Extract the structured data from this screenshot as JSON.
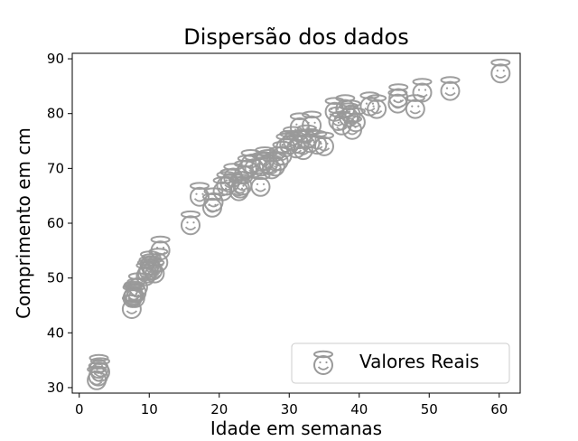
{
  "chart_data": {
    "type": "scatter",
    "title": "Dispersão dos dados",
    "xlabel": "Idade em semanas",
    "ylabel": "Comprimento em cm",
    "xlim": [
      -1,
      63
    ],
    "ylim": [
      29,
      91
    ],
    "xticks": [
      0,
      10,
      20,
      30,
      40,
      50,
      60
    ],
    "yticks": [
      30,
      40,
      50,
      60,
      70,
      80,
      90
    ],
    "grid": false,
    "legend_position": "lower-right",
    "marker": "smiling-face-with-halo",
    "series": [
      {
        "name": "Valores Reais",
        "color": "#999999",
        "points": [
          [
            2.5,
            31.5
          ],
          [
            2.7,
            32.2
          ],
          [
            3,
            33
          ],
          [
            2.8,
            33.6
          ],
          [
            7.5,
            44.5
          ],
          [
            7.6,
            46.5
          ],
          [
            7.7,
            46.8
          ],
          [
            7.8,
            47
          ],
          [
            8,
            46.5
          ],
          [
            8.2,
            47.5
          ],
          [
            8.4,
            48.5
          ],
          [
            9.5,
            50.5
          ],
          [
            9.7,
            51
          ],
          [
            9.9,
            51.5
          ],
          [
            10.1,
            52.5
          ],
          [
            10.3,
            52
          ],
          [
            10.5,
            51.5
          ],
          [
            10.8,
            51
          ],
          [
            11.3,
            53
          ],
          [
            11.6,
            55.2
          ],
          [
            15.9,
            59.8
          ],
          [
            17.2,
            65
          ],
          [
            19,
            63
          ],
          [
            19.2,
            64
          ],
          [
            20.5,
            66
          ],
          [
            21,
            67
          ],
          [
            21.5,
            67.5
          ],
          [
            22,
            68.5
          ],
          [
            22.8,
            66
          ],
          [
            23,
            66.5
          ],
          [
            23.3,
            67
          ],
          [
            23.5,
            69
          ],
          [
            24,
            70
          ],
          [
            24.5,
            71
          ],
          [
            25,
            70.2
          ],
          [
            25.9,
            66.8
          ],
          [
            26,
            70.5
          ],
          [
            26.5,
            71.5
          ],
          [
            27,
            71
          ],
          [
            27.5,
            70
          ],
          [
            28,
            70.5
          ],
          [
            28.5,
            71.5
          ],
          [
            29,
            72.5
          ],
          [
            29.5,
            74
          ],
          [
            30,
            74.5
          ],
          [
            30.5,
            75.2
          ],
          [
            31,
            73.8
          ],
          [
            31.5,
            74.6
          ],
          [
            31.5,
            77.7
          ],
          [
            32,
            73.5
          ],
          [
            32.5,
            75.5
          ],
          [
            33,
            74.8
          ],
          [
            33.2,
            78
          ],
          [
            34,
            74.5
          ],
          [
            35,
            74.2
          ],
          [
            36.5,
            80.5
          ],
          [
            37,
            78.8
          ],
          [
            37.5,
            78
          ],
          [
            38,
            81
          ],
          [
            38.5,
            79.5
          ],
          [
            38.8,
            80
          ],
          [
            39,
            77.2
          ],
          [
            39.5,
            78.6
          ],
          [
            41.5,
            81.5
          ],
          [
            42.5,
            81
          ],
          [
            45.5,
            82
          ],
          [
            45.6,
            83
          ],
          [
            48,
            81
          ],
          [
            49,
            84
          ],
          [
            53,
            84.3
          ],
          [
            60.2,
            87.5
          ]
        ]
      }
    ]
  }
}
